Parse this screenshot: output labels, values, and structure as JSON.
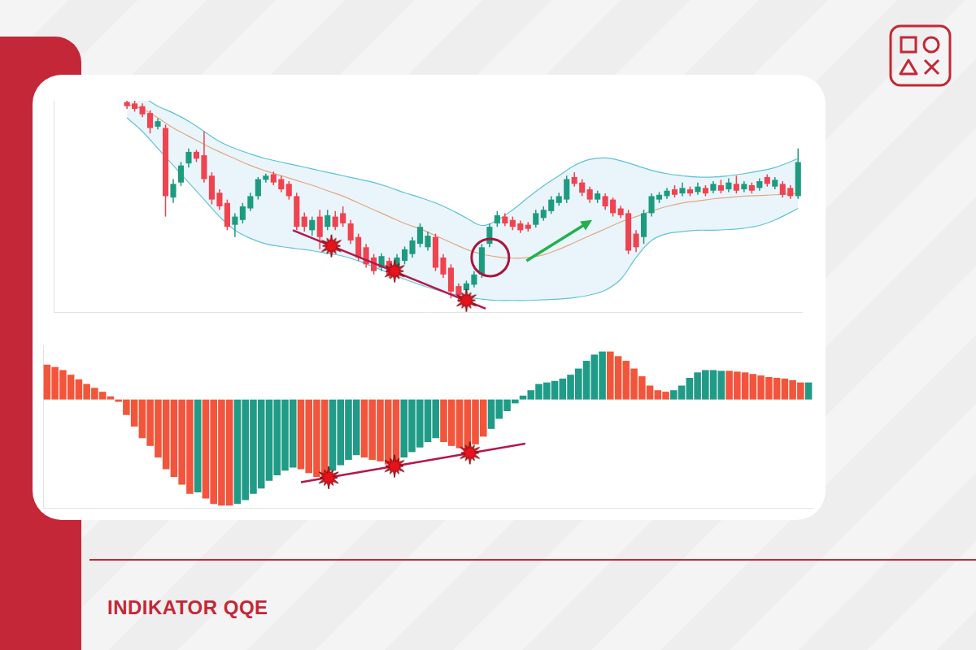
{
  "title": "INDIKATOR QQE",
  "chart_data": [
    {
      "type": "candlestick",
      "x": [
        9,
        10,
        11,
        12,
        13,
        14,
        15,
        16,
        17,
        18,
        19,
        20,
        21,
        22,
        23,
        24,
        25,
        26,
        27,
        28,
        29,
        30,
        31,
        32,
        33,
        34,
        35,
        36,
        37,
        38,
        39,
        40,
        41,
        42,
        43,
        44,
        45,
        46,
        47,
        48,
        49,
        50,
        51,
        52,
        53,
        54,
        55,
        56,
        57,
        58,
        59,
        60,
        61,
        62,
        63,
        64,
        65,
        66,
        67,
        68,
        69,
        70,
        71,
        72,
        73,
        74,
        75,
        76,
        77,
        78,
        79,
        80,
        81,
        82,
        83,
        84,
        85,
        86,
        87,
        88,
        89,
        90,
        91,
        92,
        93,
        94,
        95,
        96
      ],
      "open": [
        308,
        306,
        302,
        292,
        272,
        270,
        168,
        190,
        218,
        235,
        230,
        200,
        175,
        160,
        128,
        135,
        152,
        170,
        194,
        202,
        195,
        188,
        170,
        140,
        120,
        140,
        125,
        140,
        145,
        130,
        110,
        95,
        80,
        65,
        75,
        65,
        75,
        85,
        100,
        95,
        110,
        80,
        65,
        38,
        32,
        40,
        55,
        100,
        130,
        140,
        135,
        130,
        128,
        128,
        138,
        148,
        160,
        165,
        198,
        190,
        180,
        165,
        170,
        165,
        152,
        145,
        115,
        110,
        145,
        165,
        170,
        180,
        174,
        180,
        176,
        182,
        178,
        186,
        180,
        188,
        180,
        186,
        182,
        198,
        184,
        188,
        182,
        170
      ],
      "high": [
        312,
        310,
        306,
        296,
        284,
        275,
        195,
        220,
        240,
        238,
        265,
        205,
        180,
        165,
        145,
        160,
        175,
        198,
        203,
        206,
        200,
        192,
        175,
        146,
        140,
        150,
        150,
        148,
        155,
        135,
        115,
        100,
        85,
        86,
        80,
        85,
        96,
        110,
        130,
        118,
        115,
        85,
        70,
        42,
        46,
        60,
        100,
        130,
        148,
        145,
        140,
        134,
        132,
        150,
        155,
        170,
        175,
        200,
        205,
        195,
        184,
        178,
        174,
        168,
        156,
        150,
        120,
        150,
        174,
        176,
        182,
        186,
        190,
        184,
        190,
        186,
        192,
        194,
        196,
        200,
        192,
        190,
        196,
        202,
        198,
        192,
        186,
        240
      ],
      "low": [
        298,
        294,
        286,
        262,
        268,
        140,
        160,
        185,
        212,
        220,
        190,
        158,
        150,
        120,
        110,
        130,
        148,
        165,
        190,
        186,
        176,
        165,
        120,
        118,
        112,
        92,
        120,
        120,
        125,
        100,
        75,
        65,
        55,
        60,
        50,
        60,
        70,
        80,
        95,
        90,
        60,
        50,
        20,
        15,
        28,
        36,
        50,
        95,
        125,
        126,
        120,
        116,
        118,
        124,
        134,
        144,
        156,
        160,
        184,
        170,
        160,
        160,
        150,
        140,
        138,
        85,
        88,
        100,
        140,
        160,
        166,
        168,
        170,
        170,
        172,
        170,
        174,
        174,
        176,
        174,
        176,
        174,
        178,
        184,
        180,
        168,
        166,
        166
      ],
      "close": [
        302,
        298,
        290,
        270,
        280,
        170,
        188,
        215,
        235,
        225,
        195,
        165,
        155,
        125,
        140,
        155,
        170,
        195,
        200,
        190,
        180,
        170,
        125,
        125,
        135,
        110,
        142,
        125,
        130,
        105,
        80,
        70,
        60,
        82,
        55,
        80,
        92,
        105,
        125,
        112,
        65,
        55,
        30,
        25,
        42,
        55,
        95,
        125,
        142,
        130,
        125,
        120,
        122,
        145,
        150,
        165,
        170,
        195,
        188,
        175,
        165,
        174,
        155,
        145,
        142,
        90,
        95,
        145,
        170,
        172,
        178,
        172,
        182,
        174,
        184,
        174,
        188,
        178,
        190,
        178,
        188,
        178,
        192,
        188,
        194,
        172,
        170,
        220
      ],
      "colors": [
        "#ef4350",
        "#ef4350",
        "#ef4350",
        "#ef4350",
        "#1d9b80",
        "#ef4350",
        "#1d9b80",
        "#1d9b80",
        "#1d9b80",
        "#ef4350",
        "#ef4350",
        "#ef4350",
        "#ef4350",
        "#ef4350",
        "#1d9b80",
        "#1d9b80",
        "#1d9b80",
        "#1d9b80",
        "#1d9b80",
        "#ef4350",
        "#ef4350",
        "#ef4350",
        "#ef4350",
        "#ef4350",
        "#1d9b80",
        "#ef4350",
        "#1d9b80",
        "#ef4350",
        "#ef4350",
        "#ef4350",
        "#ef4350",
        "#ef4350",
        "#ef4350",
        "#1d9b80",
        "#ef4350",
        "#1d9b80",
        "#1d9b80",
        "#1d9b80",
        "#1d9b80",
        "#1d9b80",
        "#ef4350",
        "#ef4350",
        "#ef4350",
        "#ef4350",
        "#1d9b80",
        "#1d9b80",
        "#1d9b80",
        "#1d9b80",
        "#1d9b80",
        "#ef4350",
        "#ef4350",
        "#ef4350",
        "#ef4350",
        "#1d9b80",
        "#1d9b80",
        "#1d9b80",
        "#1d9b80",
        "#1d9b80",
        "#ef4350",
        "#ef4350",
        "#ef4350",
        "#1d9b80",
        "#ef4350",
        "#ef4350",
        "#ef4350",
        "#ef4350",
        "#ef4350",
        "#1d9b80",
        "#1d9b80",
        "#1d9b80",
        "#1d9b80",
        "#ef4350",
        "#1d9b80",
        "#ef4350",
        "#1d9b80",
        "#ef4350",
        "#1d9b80",
        "#ef4350",
        "#1d9b80",
        "#ef4350",
        "#1d9b80",
        "#ef4350",
        "#1d9b80",
        "#ef4350",
        "#1d9b80",
        "#ef4350",
        "#ef4350",
        "#1d9b80"
      ],
      "bands_x": [
        9,
        11,
        13,
        15,
        17,
        19,
        21,
        23,
        25,
        27,
        29,
        31,
        33,
        35,
        37,
        39,
        41,
        43,
        45,
        47,
        49,
        51,
        53,
        55,
        57,
        59,
        61,
        63,
        65,
        67,
        69,
        71,
        73,
        75,
        77,
        79,
        81,
        83,
        85,
        87,
        89,
        91,
        93,
        96
      ],
      "bands": [
        {
          "color": "#5cc3d2",
          "values": [
            320,
            315,
            302,
            292,
            280,
            265,
            250,
            240,
            232,
            225,
            220,
            215,
            210,
            205,
            200,
            195,
            190,
            183,
            175,
            168,
            160,
            150,
            138,
            127,
            135,
            150,
            168,
            185,
            200,
            215,
            224,
            226,
            222,
            215,
            208,
            203,
            200,
            198,
            198,
            200,
            203,
            207,
            212,
            225
          ]
        },
        {
          "color": "#f2a062",
          "values": [
            305,
            298,
            285,
            270,
            258,
            246,
            235,
            225,
            215,
            207,
            200,
            193,
            186,
            178,
            170,
            160,
            150,
            140,
            130,
            122,
            112,
            102,
            92,
            85,
            81,
            79,
            80,
            84,
            92,
            102,
            112,
            122,
            132,
            140,
            148,
            155,
            160,
            163,
            166,
            168,
            170,
            171,
            172,
            174
          ]
        },
        {
          "color": "#5cc3d2",
          "values": [
            285,
            265,
            240,
            215,
            190,
            165,
            140,
            120,
            108,
            100,
            96,
            93,
            90,
            86,
            82,
            75,
            66,
            57,
            48,
            40,
            33,
            27,
            22,
            19,
            17,
            17,
            17,
            18,
            19,
            21,
            25,
            32,
            48,
            80,
            105,
            115,
            118,
            120,
            120,
            121,
            123,
            127,
            135,
            152
          ]
        }
      ],
      "trend_line": {
        "x": [
          30.5,
          55.5
        ],
        "values": [
          120,
          5
        ],
        "color": "#b5174a"
      },
      "markers": {
        "x": [
          35.5,
          43.7,
          53
        ],
        "values": [
          97,
          60,
          17
        ],
        "color": "#e8121c",
        "marker": "star"
      },
      "highlight": {
        "x": 56.1,
        "value": 80,
        "color": "#a5173e",
        "marker": "circle"
      },
      "arrow": {
        "x": [
          60.8,
          69.3
        ],
        "values": [
          75,
          135
        ],
        "color": "#22b14c"
      },
      "xlim": [
        -0.5,
        96.5
      ],
      "ylim": [
        0,
        310
      ],
      "grid": false,
      "tick_labels": false
    },
    {
      "type": "bar",
      "x": [
        0,
        1,
        2,
        3,
        4,
        5,
        6,
        7,
        8,
        9,
        10,
        11,
        12,
        13,
        14,
        15,
        16,
        17,
        18,
        19,
        20,
        21,
        22,
        23,
        24,
        25,
        26,
        27,
        28,
        29,
        30,
        31,
        32,
        33,
        34,
        35,
        36,
        37,
        38,
        39,
        40,
        41,
        42,
        43,
        44,
        45,
        46,
        47,
        48,
        49,
        50,
        51,
        52,
        53,
        54,
        55,
        56,
        57,
        58,
        59,
        60,
        61,
        62,
        63,
        64,
        65,
        66,
        67,
        68,
        69,
        70,
        71,
        72,
        73,
        74,
        75,
        76,
        77,
        78,
        79,
        80,
        81,
        82,
        83,
        84,
        85,
        86,
        87,
        88,
        89,
        90,
        91,
        92,
        93,
        94,
        95,
        96
      ],
      "values": [
        45,
        42,
        38,
        32,
        26,
        20,
        15,
        10,
        4,
        -3,
        -20,
        -35,
        -50,
        -60,
        -75,
        -90,
        -100,
        -110,
        -122,
        -120,
        -128,
        -135,
        -137,
        -137,
        -135,
        -130,
        -122,
        -115,
        -105,
        -98,
        -92,
        -88,
        -90,
        -95,
        -100,
        -103,
        -92,
        -85,
        -78,
        -72,
        -75,
        -78,
        -80,
        -84,
        -83,
        -75,
        -68,
        -62,
        -55,
        -50,
        -55,
        -60,
        -63,
        -65,
        -58,
        -48,
        -38,
        -25,
        -15,
        -5,
        5,
        12,
        20,
        22,
        24,
        27,
        32,
        40,
        50,
        58,
        62,
        62,
        56,
        50,
        40,
        30,
        18,
        12,
        10,
        12,
        18,
        28,
        35,
        38,
        38,
        37,
        37,
        36,
        35,
        33,
        31,
        29,
        28,
        27,
        25,
        22,
        22
      ],
      "colors": [
        "#f2553b",
        "#f2553b",
        "#f2553b",
        "#f2553b",
        "#f2553b",
        "#f2553b",
        "#f2553b",
        "#f2553b",
        "#f2553b",
        "#f2553b",
        "#f2553b",
        "#f2553b",
        "#f2553b",
        "#f2553b",
        "#f2553b",
        "#f2553b",
        "#f2553b",
        "#f2553b",
        "#f2553b",
        "#1f9b87",
        "#f2553b",
        "#f2553b",
        "#f2553b",
        "#f2553b",
        "#1f9b87",
        "#1f9b87",
        "#1f9b87",
        "#1f9b87",
        "#1f9b87",
        "#1f9b87",
        "#1f9b87",
        "#1f9b87",
        "#f2553b",
        "#f2553b",
        "#f2553b",
        "#f2553b",
        "#1f9b87",
        "#1f9b87",
        "#1f9b87",
        "#1f9b87",
        "#f2553b",
        "#f2553b",
        "#f2553b",
        "#f2553b",
        "#f2553b",
        "#1f9b87",
        "#1f9b87",
        "#1f9b87",
        "#1f9b87",
        "#1f9b87",
        "#f2553b",
        "#f2553b",
        "#f2553b",
        "#f2553b",
        "#f2553b",
        "#f2553b",
        "#1f9b87",
        "#1f9b87",
        "#1f9b87",
        "#1f9b87",
        "#1f9b87",
        "#1f9b87",
        "#1f9b87",
        "#1f9b87",
        "#1f9b87",
        "#1f9b87",
        "#1f9b87",
        "#1f9b87",
        "#1f9b87",
        "#1f9b87",
        "#1f9b87",
        "#f2553b",
        "#f2553b",
        "#f2553b",
        "#f2553b",
        "#f2553b",
        "#f2553b",
        "#f2553b",
        "#f2553b",
        "#1f9b87",
        "#1f9b87",
        "#1f9b87",
        "#1f9b87",
        "#1f9b87",
        "#1f9b87",
        "#1f9b87",
        "#f2553b",
        "#f2553b",
        "#f2553b",
        "#f2553b",
        "#f2553b",
        "#f2553b",
        "#f2553b",
        "#f2553b",
        "#f2553b",
        "#f2553b",
        "#1f9b87"
      ],
      "trend_line": {
        "x": [
          32,
          60.3
        ],
        "values": [
          -107,
          -57
        ],
        "color": "#b5174a"
      },
      "markers": {
        "x": [
          35.5,
          43.8,
          53.3
        ],
        "values": [
          -101,
          -86,
          -69
        ],
        "color": "#e8121c",
        "marker": "star"
      },
      "xlim": [
        -0.5,
        96.5
      ],
      "ylim": [
        -140,
        70
      ],
      "grid": false,
      "tick_labels": false
    }
  ]
}
